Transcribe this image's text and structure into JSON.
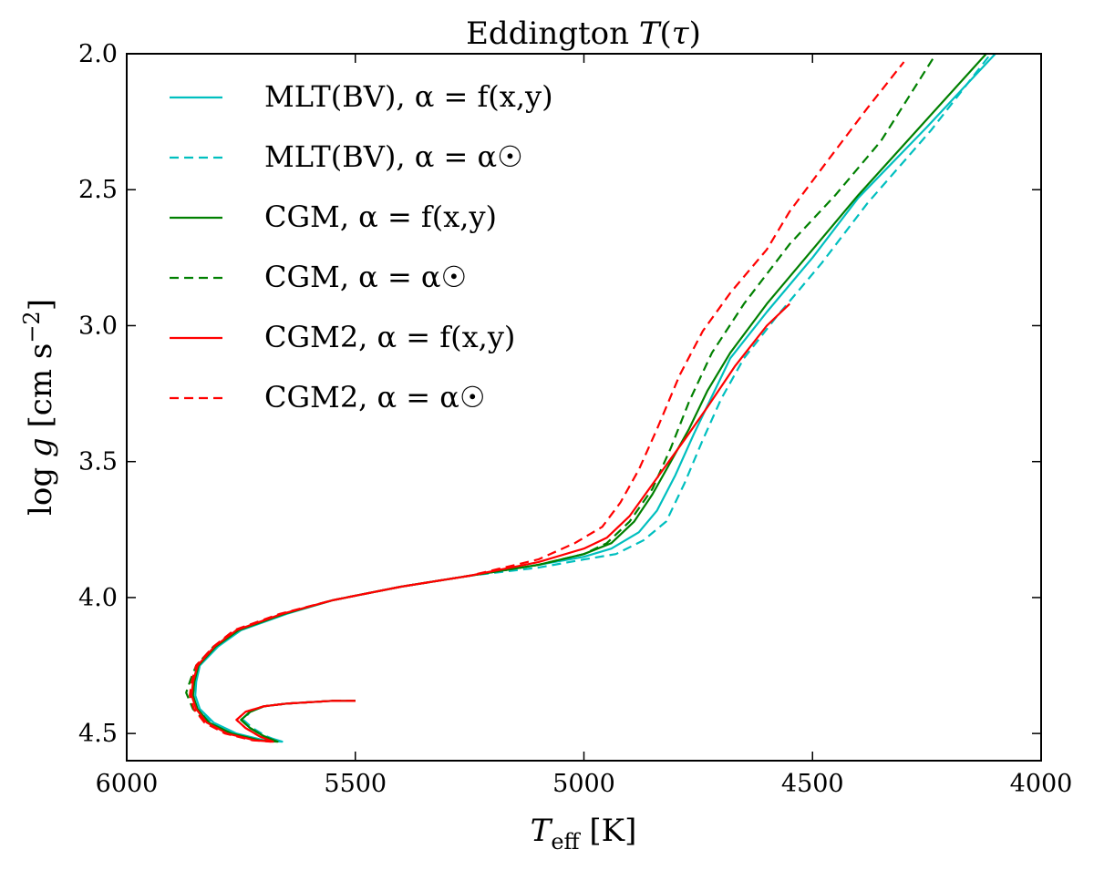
{
  "chart_data": {
    "type": "line",
    "title": "Eddington T(τ)",
    "xlabel": "T_eff [K]",
    "ylabel": "log g [cm s^-2]",
    "xlim": [
      6000,
      4000
    ],
    "ylim": [
      4.6,
      2.0
    ],
    "x_ticks": [
      6000,
      5500,
      5000,
      4500,
      4000
    ],
    "y_ticks": [
      2.0,
      2.5,
      3.0,
      3.5,
      4.0,
      4.5
    ],
    "x_tick_labels": [
      "6000",
      "5500",
      "5000",
      "4500",
      "4000"
    ],
    "y_tick_labels": [
      "2.0",
      "2.5",
      "3.0",
      "3.5",
      "4.0",
      "4.5"
    ],
    "legend_position": "top-left",
    "series": [
      {
        "name": "MLT(BV), α = f(x,y)",
        "color": "#00bfbf",
        "dash": "solid",
        "points": [
          [
            5500,
            4.38
          ],
          [
            5550,
            4.38
          ],
          [
            5600,
            4.385
          ],
          [
            5650,
            4.39
          ],
          [
            5700,
            4.4
          ],
          [
            5730,
            4.42
          ],
          [
            5750,
            4.45
          ],
          [
            5730,
            4.48
          ],
          [
            5700,
            4.51
          ],
          [
            5660,
            4.53
          ],
          [
            5700,
            4.525
          ],
          [
            5760,
            4.5
          ],
          [
            5810,
            4.46
          ],
          [
            5840,
            4.41
          ],
          [
            5850,
            4.36
          ],
          [
            5848,
            4.31
          ],
          [
            5840,
            4.25
          ],
          [
            5800,
            4.18
          ],
          [
            5750,
            4.12
          ],
          [
            5650,
            4.06
          ],
          [
            5550,
            4.01
          ],
          [
            5400,
            3.96
          ],
          [
            5250,
            3.92
          ],
          [
            5100,
            3.88
          ],
          [
            5000,
            3.85
          ],
          [
            4940,
            3.82
          ],
          [
            4880,
            3.76
          ],
          [
            4840,
            3.68
          ],
          [
            4800,
            3.55
          ],
          [
            4760,
            3.4
          ],
          [
            4720,
            3.26
          ],
          [
            4680,
            3.12
          ],
          [
            4600,
            2.95
          ],
          [
            4500,
            2.75
          ],
          [
            4400,
            2.53
          ],
          [
            4250,
            2.27
          ],
          [
            4100,
            2.0
          ]
        ]
      },
      {
        "name": "MLT(BV), α = α☉",
        "color": "#00bfbf",
        "dash": "dashed",
        "points": [
          [
            5500,
            4.38
          ],
          [
            5550,
            4.38
          ],
          [
            5600,
            4.385
          ],
          [
            5650,
            4.39
          ],
          [
            5700,
            4.4
          ],
          [
            5730,
            4.42
          ],
          [
            5745,
            4.45
          ],
          [
            5725,
            4.48
          ],
          [
            5695,
            4.51
          ],
          [
            5665,
            4.53
          ],
          [
            5705,
            4.525
          ],
          [
            5765,
            4.5
          ],
          [
            5815,
            4.46
          ],
          [
            5845,
            4.41
          ],
          [
            5855,
            4.36
          ],
          [
            5852,
            4.31
          ],
          [
            5843,
            4.25
          ],
          [
            5805,
            4.18
          ],
          [
            5755,
            4.12
          ],
          [
            5655,
            4.06
          ],
          [
            5550,
            4.01
          ],
          [
            5400,
            3.96
          ],
          [
            5250,
            3.92
          ],
          [
            5100,
            3.89
          ],
          [
            5000,
            3.86
          ],
          [
            4930,
            3.84
          ],
          [
            4870,
            3.79
          ],
          [
            4820,
            3.72
          ],
          [
            4780,
            3.58
          ],
          [
            4740,
            3.42
          ],
          [
            4700,
            3.27
          ],
          [
            4650,
            3.12
          ],
          [
            4580,
            2.97
          ],
          [
            4480,
            2.77
          ],
          [
            4380,
            2.55
          ],
          [
            4240,
            2.28
          ],
          [
            4110,
            2.0
          ]
        ]
      },
      {
        "name": "CGM, α = f(x,y)",
        "color": "#008000",
        "dash": "solid",
        "points": [
          [
            5500,
            4.38
          ],
          [
            5550,
            4.38
          ],
          [
            5600,
            4.385
          ],
          [
            5650,
            4.39
          ],
          [
            5700,
            4.4
          ],
          [
            5730,
            4.42
          ],
          [
            5750,
            4.45
          ],
          [
            5730,
            4.48
          ],
          [
            5700,
            4.51
          ],
          [
            5670,
            4.53
          ],
          [
            5710,
            4.525
          ],
          [
            5770,
            4.5
          ],
          [
            5820,
            4.46
          ],
          [
            5845,
            4.41
          ],
          [
            5855,
            4.36
          ],
          [
            5852,
            4.31
          ],
          [
            5843,
            4.25
          ],
          [
            5805,
            4.18
          ],
          [
            5755,
            4.12
          ],
          [
            5655,
            4.06
          ],
          [
            5550,
            4.01
          ],
          [
            5400,
            3.96
          ],
          [
            5250,
            3.92
          ],
          [
            5100,
            3.88
          ],
          [
            5000,
            3.84
          ],
          [
            4940,
            3.8
          ],
          [
            4890,
            3.72
          ],
          [
            4850,
            3.62
          ],
          [
            4810,
            3.5
          ],
          [
            4770,
            3.38
          ],
          [
            4730,
            3.24
          ],
          [
            4680,
            3.1
          ],
          [
            4600,
            2.92
          ],
          [
            4500,
            2.72
          ],
          [
            4400,
            2.52
          ],
          [
            4260,
            2.26
          ],
          [
            4120,
            2.0
          ]
        ]
      },
      {
        "name": "CGM, α = α☉",
        "color": "#008000",
        "dash": "dashed",
        "points": [
          [
            5500,
            4.38
          ],
          [
            5550,
            4.38
          ],
          [
            5600,
            4.385
          ],
          [
            5650,
            4.39
          ],
          [
            5700,
            4.4
          ],
          [
            5730,
            4.42
          ],
          [
            5750,
            4.45
          ],
          [
            5730,
            4.48
          ],
          [
            5700,
            4.51
          ],
          [
            5675,
            4.53
          ],
          [
            5715,
            4.525
          ],
          [
            5775,
            4.5
          ],
          [
            5825,
            4.46
          ],
          [
            5855,
            4.41
          ],
          [
            5870,
            4.35
          ],
          [
            5860,
            4.3
          ],
          [
            5848,
            4.25
          ],
          [
            5810,
            4.18
          ],
          [
            5760,
            4.12
          ],
          [
            5660,
            4.06
          ],
          [
            5550,
            4.01
          ],
          [
            5400,
            3.96
          ],
          [
            5250,
            3.92
          ],
          [
            5100,
            3.88
          ],
          [
            5000,
            3.84
          ],
          [
            4950,
            3.8
          ],
          [
            4900,
            3.72
          ],
          [
            4850,
            3.6
          ],
          [
            4810,
            3.45
          ],
          [
            4770,
            3.28
          ],
          [
            4720,
            3.1
          ],
          [
            4650,
            2.92
          ],
          [
            4550,
            2.7
          ],
          [
            4450,
            2.52
          ],
          [
            4350,
            2.32
          ],
          [
            4230,
            2.0
          ]
        ]
      },
      {
        "name": "CGM2, α = f(x,y)",
        "color": "#ff0000",
        "dash": "solid",
        "points": [
          [
            5500,
            4.38
          ],
          [
            5550,
            4.38
          ],
          [
            5600,
            4.385
          ],
          [
            5650,
            4.39
          ],
          [
            5700,
            4.4
          ],
          [
            5740,
            4.42
          ],
          [
            5760,
            4.45
          ],
          [
            5740,
            4.48
          ],
          [
            5710,
            4.51
          ],
          [
            5680,
            4.53
          ],
          [
            5720,
            4.525
          ],
          [
            5780,
            4.5
          ],
          [
            5825,
            4.46
          ],
          [
            5848,
            4.41
          ],
          [
            5858,
            4.36
          ],
          [
            5855,
            4.31
          ],
          [
            5845,
            4.25
          ],
          [
            5808,
            4.18
          ],
          [
            5760,
            4.12
          ],
          [
            5660,
            4.06
          ],
          [
            5550,
            4.01
          ],
          [
            5400,
            3.96
          ],
          [
            5250,
            3.92
          ],
          [
            5100,
            3.87
          ],
          [
            5000,
            3.82
          ],
          [
            4950,
            3.78
          ],
          [
            4900,
            3.7
          ],
          [
            4840,
            3.56
          ],
          [
            4780,
            3.42
          ],
          [
            4730,
            3.3
          ],
          [
            4670,
            3.15
          ],
          [
            4600,
            3.0
          ],
          [
            4550,
            2.92
          ]
        ]
      },
      {
        "name": "CGM2, α = α☉",
        "color": "#ff0000",
        "dash": "dashed",
        "points": [
          [
            5500,
            4.38
          ],
          [
            5550,
            4.38
          ],
          [
            5600,
            4.385
          ],
          [
            5650,
            4.39
          ],
          [
            5700,
            4.4
          ],
          [
            5740,
            4.42
          ],
          [
            5760,
            4.45
          ],
          [
            5740,
            4.48
          ],
          [
            5710,
            4.51
          ],
          [
            5685,
            4.53
          ],
          [
            5725,
            4.525
          ],
          [
            5785,
            4.5
          ],
          [
            5830,
            4.46
          ],
          [
            5853,
            4.41
          ],
          [
            5862,
            4.36
          ],
          [
            5858,
            4.31
          ],
          [
            5848,
            4.25
          ],
          [
            5810,
            4.18
          ],
          [
            5765,
            4.12
          ],
          [
            5665,
            4.06
          ],
          [
            5550,
            4.01
          ],
          [
            5400,
            3.96
          ],
          [
            5250,
            3.92
          ],
          [
            5100,
            3.86
          ],
          [
            5020,
            3.8
          ],
          [
            4960,
            3.74
          ],
          [
            4920,
            3.65
          ],
          [
            4880,
            3.53
          ],
          [
            4840,
            3.38
          ],
          [
            4790,
            3.18
          ],
          [
            4740,
            3.02
          ],
          [
            4680,
            2.88
          ],
          [
            4600,
            2.72
          ],
          [
            4550,
            2.58
          ],
          [
            4470,
            2.4
          ],
          [
            4380,
            2.2
          ],
          [
            4300,
            2.03
          ]
        ]
      }
    ]
  }
}
